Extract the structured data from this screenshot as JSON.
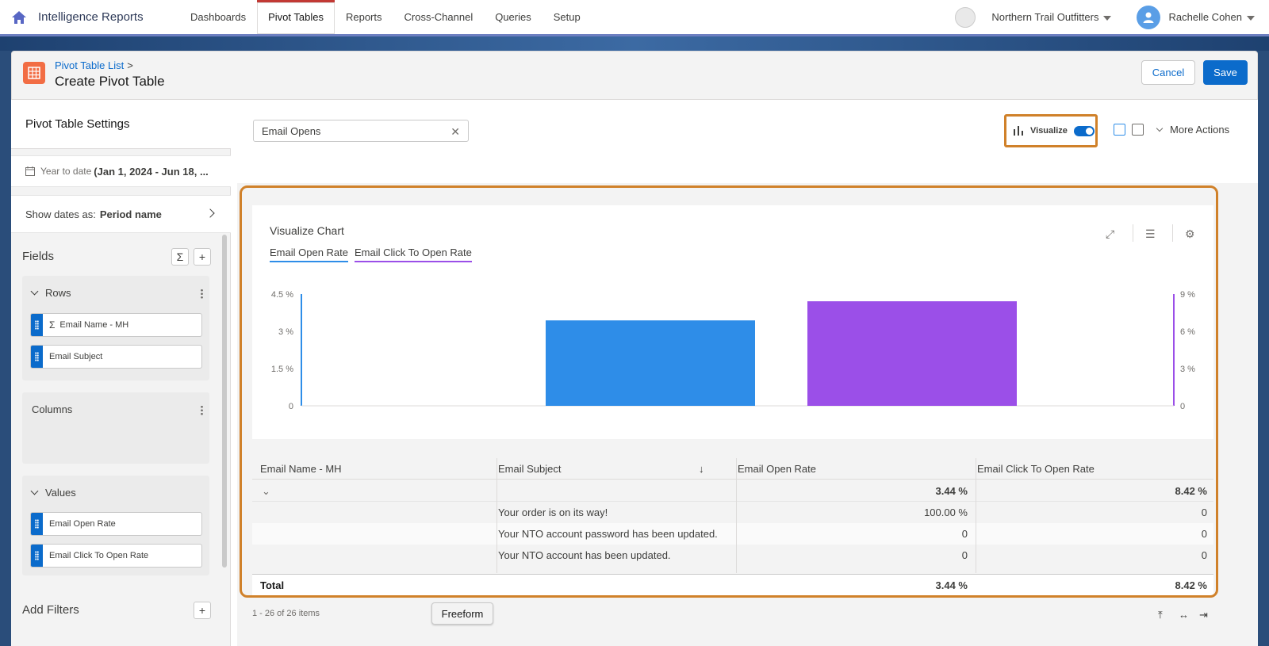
{
  "app": {
    "name": "Intelligence Reports",
    "home_icon": "home-icon"
  },
  "nav": {
    "tabs": [
      {
        "label": "Dashboards",
        "active": false
      },
      {
        "label": "Pivot Tables",
        "active": true
      },
      {
        "label": "Reports",
        "active": false
      },
      {
        "label": "Cross-Channel",
        "active": false
      },
      {
        "label": "Queries",
        "active": false
      },
      {
        "label": "Setup",
        "active": false
      }
    ],
    "org": "Northern Trail Outfitters",
    "user": "Rachelle Cohen"
  },
  "header": {
    "breadcrumb": "Pivot Table List",
    "breadcrumb_sep": ">",
    "title": "Create Pivot Table",
    "cancel_label": "Cancel",
    "save_label": "Save"
  },
  "sidebar": {
    "title": "Pivot Table Settings",
    "date_label": "Year to date",
    "date_value": "(Jan 1, 2024 - Jun 18, ...",
    "show_dates_label": "Show dates as:",
    "show_dates_value": "Period name",
    "fields_label": "Fields",
    "rows_label": "Rows",
    "rows": [
      {
        "label": "Email Name - MH",
        "icon": "sigma-icon"
      },
      {
        "label": "Email Subject"
      }
    ],
    "columns_label": "Columns",
    "values_label": "Values",
    "values": [
      {
        "label": "Email Open Rate"
      },
      {
        "label": "Email Click To Open Rate"
      }
    ],
    "add_filters_label": "Add Filters"
  },
  "toolbar": {
    "search_value": "Email Opens",
    "visualize_label": "Visualize",
    "visualize_on": true,
    "more_actions_label": "More Actions"
  },
  "chart_data": {
    "type": "bar",
    "title": "Visualize Chart",
    "series": [
      {
        "name": "Email Open Rate",
        "values": [
          3.44
        ],
        "color": "#2e8de8",
        "axis": "left"
      },
      {
        "name": "Email Click To Open Rate",
        "values": [
          8.42
        ],
        "color": "#9b4fe8",
        "axis": "right"
      }
    ],
    "y_left": {
      "min": 0,
      "max": 4.5,
      "ticks": [
        "0",
        "1.5 %",
        "3 %",
        "4.5 %"
      ]
    },
    "y_right": {
      "min": 0,
      "max": 9,
      "ticks": [
        "0",
        "3 %",
        "6 %",
        "9 %"
      ]
    },
    "grid": false
  },
  "table": {
    "headers": [
      "Email Name - MH",
      "Email Subject",
      "Email Open Rate",
      "Email Click To Open Rate"
    ],
    "group_row": {
      "open_rate": "3.44 %",
      "ctor": "8.42 %"
    },
    "rows": [
      {
        "subject": "Your order is on its way!",
        "open_rate": "100.00 %",
        "ctor": "0"
      },
      {
        "subject": "Your NTO account password has been updated.",
        "open_rate": "0",
        "ctor": "0"
      },
      {
        "subject": "Your NTO account has been updated.",
        "open_rate": "0",
        "ctor": "0"
      }
    ],
    "total": {
      "label": "Total",
      "open_rate": "3.44 %",
      "ctor": "8.42 %"
    }
  },
  "footer": {
    "items_count": "1 - 26 of 26 items",
    "tooltip": "Freeform"
  }
}
